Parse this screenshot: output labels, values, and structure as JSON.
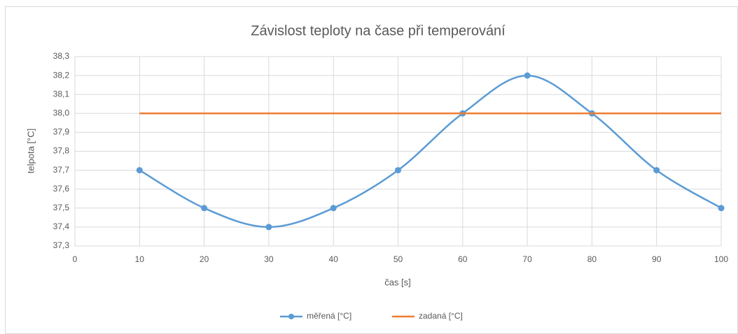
{
  "chart_data": {
    "type": "line",
    "title": "Závislost teploty na čase při temperování",
    "xlabel": "čas [s]",
    "ylabel": "telpota [°C]",
    "x": [
      10,
      20,
      30,
      40,
      50,
      60,
      70,
      80,
      90,
      100
    ],
    "series": [
      {
        "name": "měřená [°C]",
        "color": "#5b9bd5",
        "markers": true,
        "smooth": true,
        "values": [
          37.7,
          37.5,
          37.4,
          37.5,
          37.7,
          38.0,
          38.2,
          38.0,
          37.7,
          37.5
        ]
      },
      {
        "name": "zadaná [°C]",
        "color": "#ed7d31",
        "markers": false,
        "smooth": false,
        "values": [
          38.0,
          38.0,
          38.0,
          38.0,
          38.0,
          38.0,
          38.0,
          38.0,
          38.0,
          38.0
        ]
      }
    ],
    "xlim": [
      0,
      100
    ],
    "xticks": [
      0,
      10,
      20,
      30,
      40,
      50,
      60,
      70,
      80,
      90,
      100
    ],
    "ylim": [
      37.3,
      38.3
    ],
    "yticks": [
      {
        "value": 37.3,
        "label": "37,3"
      },
      {
        "value": 37.4,
        "label": "37,4"
      },
      {
        "value": 37.5,
        "label": "37,5"
      },
      {
        "value": 37.6,
        "label": "37,6"
      },
      {
        "value": 37.7,
        "label": "37,7"
      },
      {
        "value": 37.8,
        "label": "37,8"
      },
      {
        "value": 37.9,
        "label": "37,9"
      },
      {
        "value": 38.0,
        "label": "38,0"
      },
      {
        "value": 38.1,
        "label": "38,1"
      },
      {
        "value": 38.2,
        "label": "38,2"
      },
      {
        "value": 38.3,
        "label": "38,3"
      }
    ],
    "grid": true,
    "legend": "bottom"
  }
}
